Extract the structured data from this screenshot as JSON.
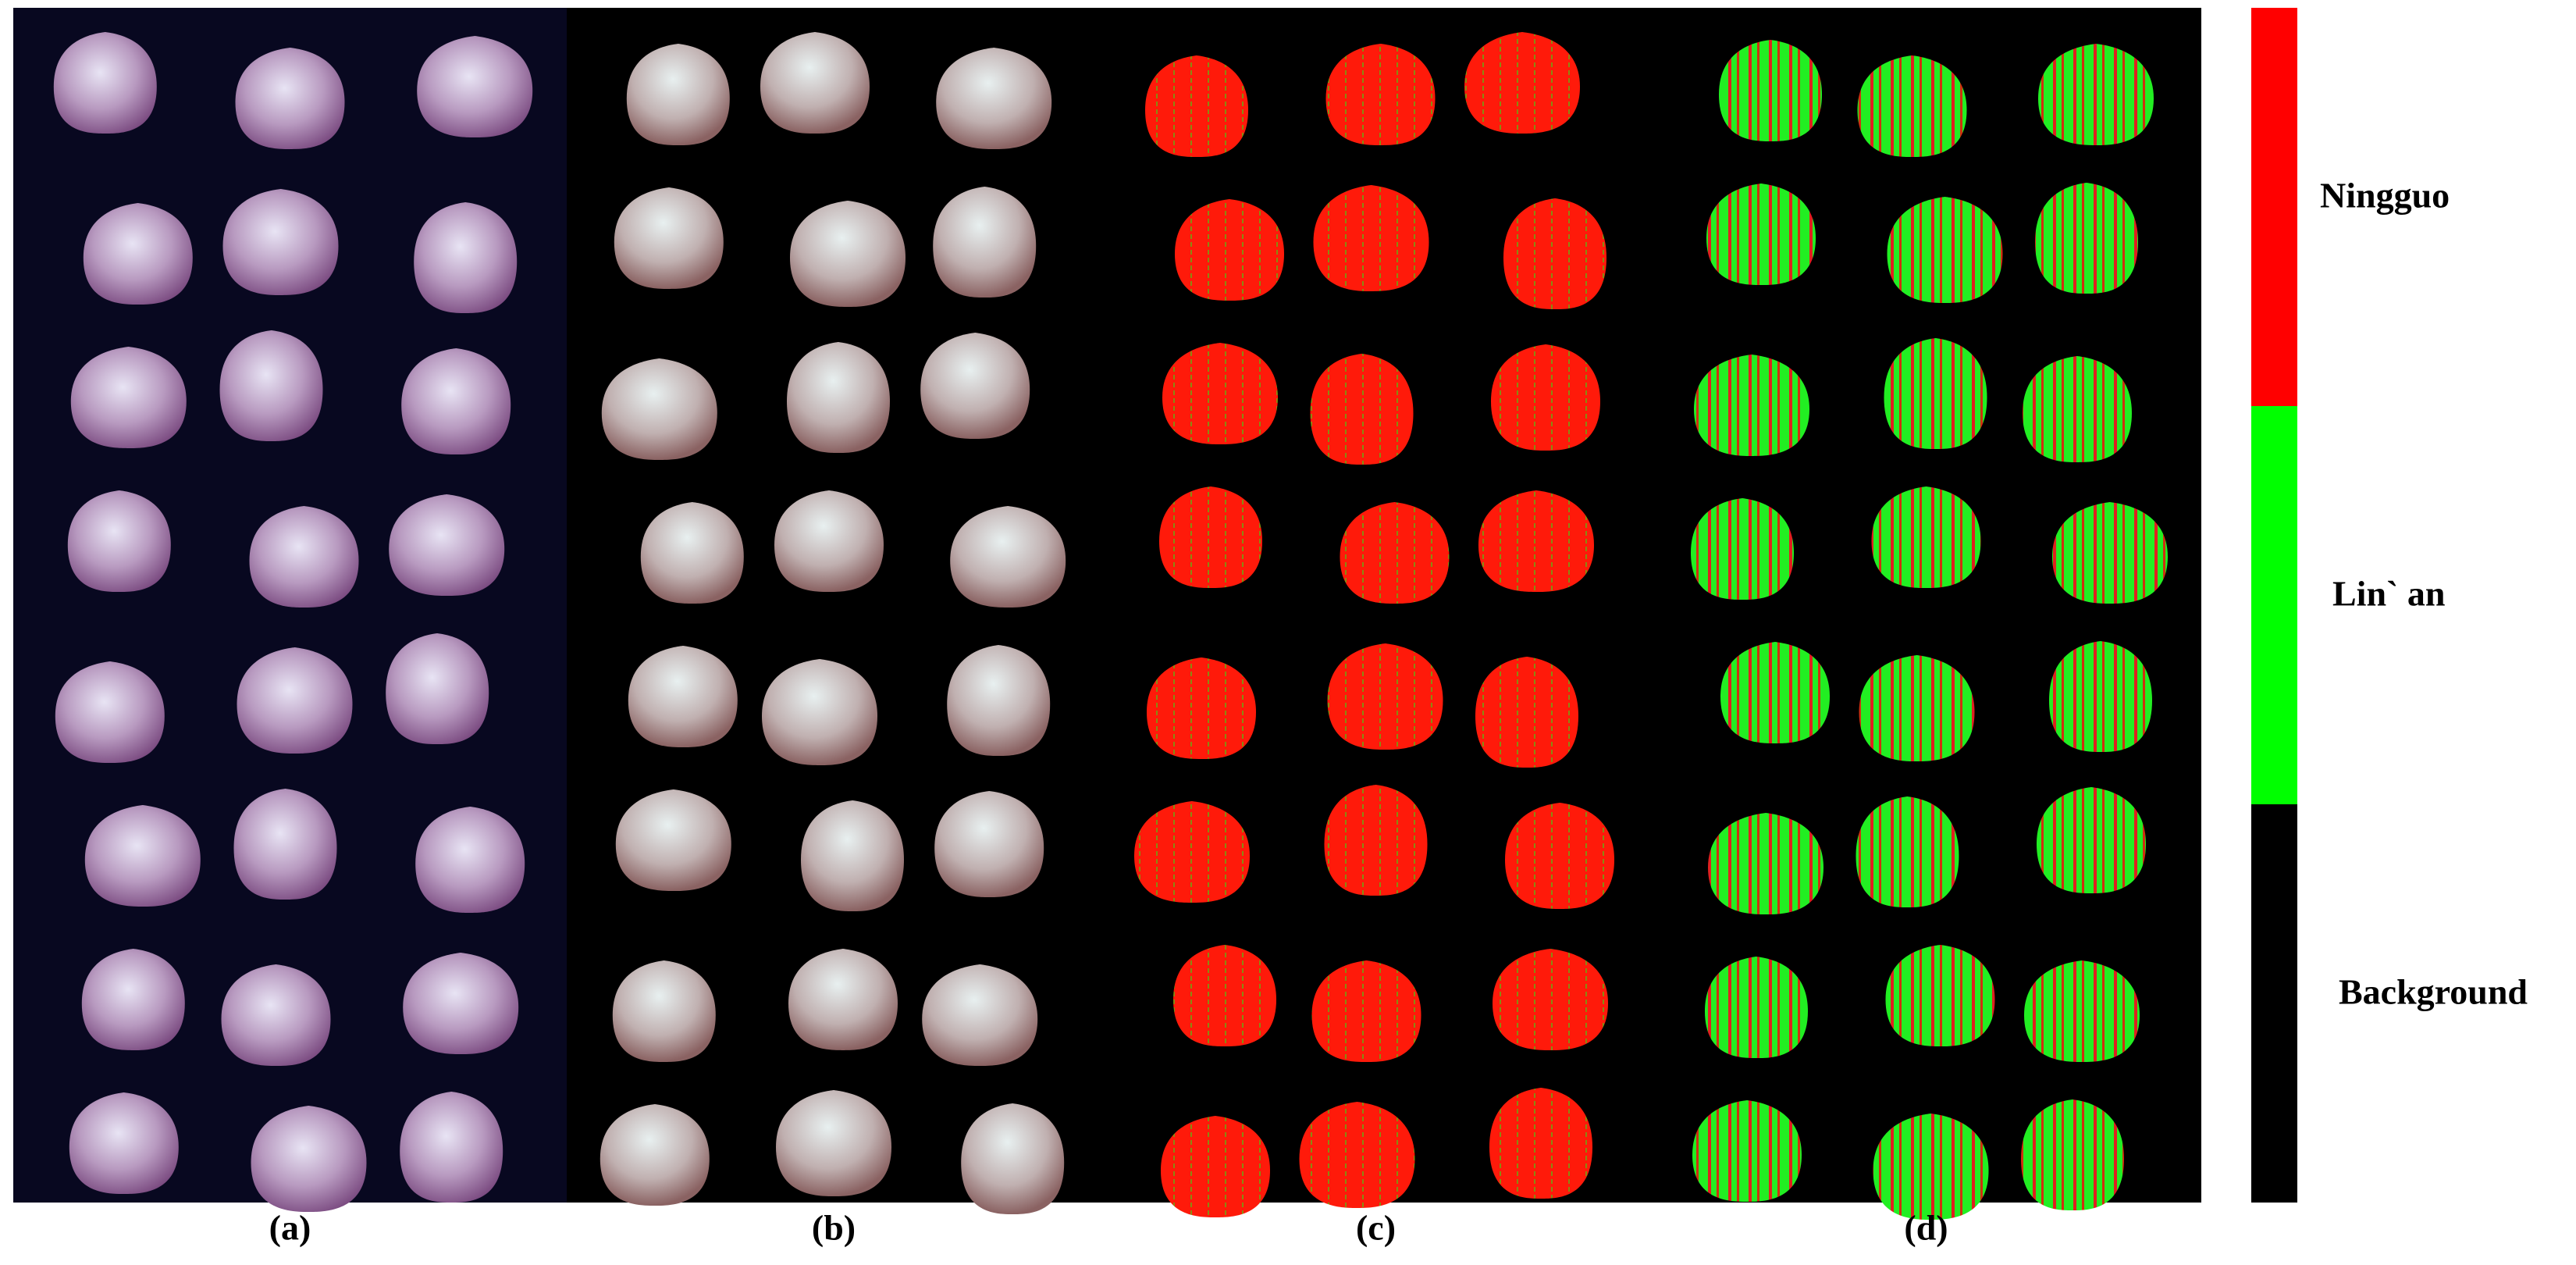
{
  "panels": [
    {
      "label": "(a)"
    },
    {
      "label": "(b)"
    },
    {
      "label": "(c)"
    },
    {
      "label": "(d)"
    }
  ],
  "legend": [
    {
      "label": "Ningguo",
      "color": "#ff0000"
    },
    {
      "label": "Lin` an",
      "color": "#00ff00"
    },
    {
      "label": "Background",
      "color": "#000000"
    }
  ]
}
